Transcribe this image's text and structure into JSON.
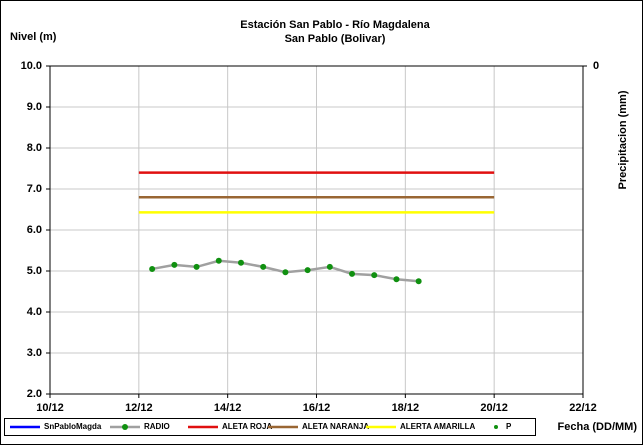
{
  "chart_data": {
    "type": "line",
    "title": "Estación San Pablo - Río Magdalena",
    "subtitle": "San Pablo (Bolivar)",
    "y_label": "Nivel (m)",
    "y2_label": "Precipitacion (mm)",
    "x_label": "Fecha (DD/MM)",
    "xlim": [
      10,
      22
    ],
    "xticks": [
      {
        "value": 10,
        "label": "10/12"
      },
      {
        "value": 12,
        "label": "12/12"
      },
      {
        "value": 14,
        "label": "14/12"
      },
      {
        "value": 16,
        "label": "16/12"
      },
      {
        "value": 18,
        "label": "18/12"
      },
      {
        "value": 20,
        "label": "20/12"
      },
      {
        "value": 22,
        "label": "22/12"
      }
    ],
    "ylim": [
      2,
      10
    ],
    "yticks": [
      {
        "value": 2,
        "label": "2.0"
      },
      {
        "value": 3,
        "label": "3.0"
      },
      {
        "value": 4,
        "label": "4.0"
      },
      {
        "value": 5,
        "label": "5.0"
      },
      {
        "value": 6,
        "label": "6.0"
      },
      {
        "value": 7,
        "label": "7.0"
      },
      {
        "value": 8,
        "label": "8.0"
      },
      {
        "value": 9,
        "label": "9.0"
      },
      {
        "value": 10,
        "label": "10.0"
      }
    ],
    "y2ticks": [
      0
    ],
    "grid": true,
    "legend": "bottom",
    "series": [
      {
        "name": "SnPabloMagda",
        "color": "#0000ff",
        "x": [],
        "values": []
      },
      {
        "name": "RADIO",
        "color": "#a0a0a0",
        "marker_color": "#109010",
        "x": [
          12.3,
          12.8,
          13.3,
          13.8,
          14.3,
          14.8,
          15.3,
          15.8,
          16.3,
          16.8,
          17.3,
          17.8,
          18.3
        ],
        "values": [
          5.05,
          5.15,
          5.1,
          5.25,
          5.2,
          5.1,
          4.97,
          5.02,
          5.1,
          4.93,
          4.9,
          4.8,
          4.75
        ]
      },
      {
        "name": "ALETA ROJA",
        "color": "#e01010",
        "x": [
          12,
          20
        ],
        "values": [
          7.4,
          7.4
        ]
      },
      {
        "name": "ALETA NARANJA",
        "color": "#996633",
        "x": [
          12,
          20
        ],
        "values": [
          6.8,
          6.8
        ]
      },
      {
        "name": "ALERTA AMARILLA",
        "color": "#ffff00",
        "x": [
          12,
          20
        ],
        "values": [
          6.43,
          6.43
        ]
      },
      {
        "name": "P",
        "color": "#109010",
        "x": [],
        "values": []
      }
    ]
  }
}
